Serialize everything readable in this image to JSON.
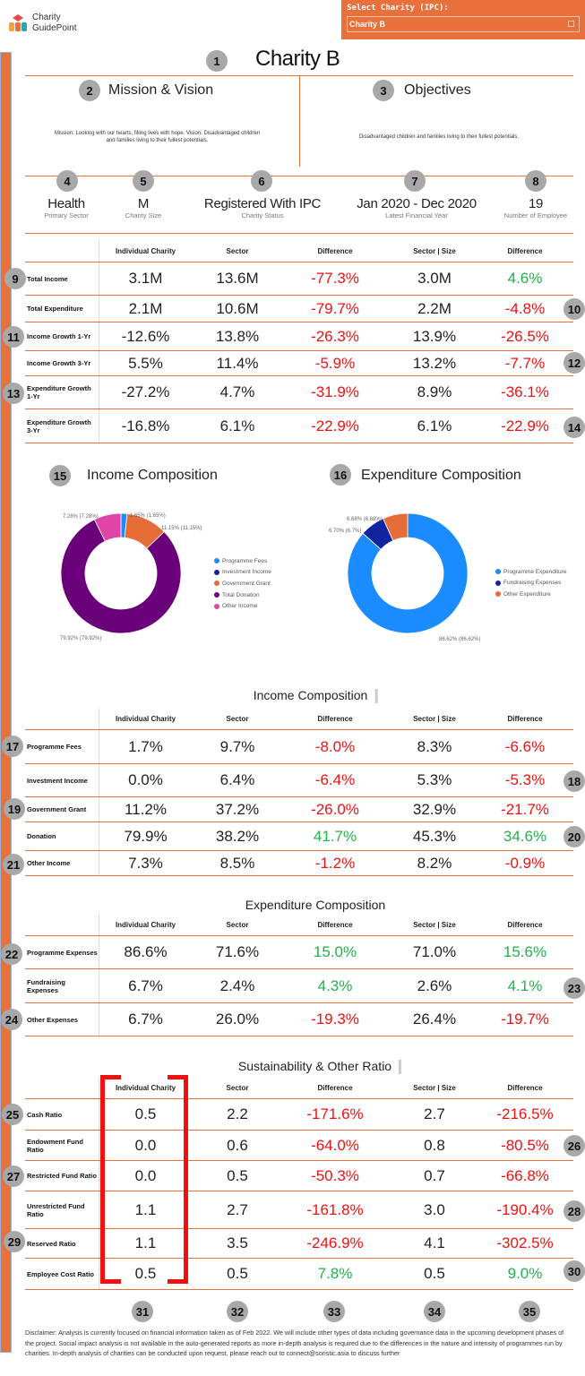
{
  "brand": {
    "logo_line1": "Charity",
    "logo_line2": "GuidePoint"
  },
  "selector": {
    "label": "Select  Charity  (IPC):",
    "value": "Charity B"
  },
  "header": {
    "title": "Charity B"
  },
  "mission": {
    "heading": "Mission & Vision",
    "text": "Mission: Looking with our hearts, filling lives with hope. Vision: Disadvantaged children and families living to their fullest potentials."
  },
  "objectives": {
    "heading": "Objectives",
    "text": "Disadvantaged children and families living to their fullest potentials."
  },
  "facts": [
    {
      "value": "Health",
      "label": "Primary Sector"
    },
    {
      "value": "M",
      "label": "Charity Size"
    },
    {
      "value": "Registered With IPC",
      "label": "Charity Status"
    },
    {
      "value": "Jan 2020 - Dec 2020",
      "label": "Latest Financial Year"
    },
    {
      "value": "19",
      "label": "Number of Employee"
    }
  ],
  "columns": [
    "Individual Charity",
    "Sector",
    "Difference",
    "Sector | Size",
    "Difference"
  ],
  "financial_table": {
    "rows": [
      {
        "label": "Total Income",
        "values": [
          "3.1M",
          "13.6M",
          "-77.3%",
          "3.0M",
          "4.6%"
        ]
      },
      {
        "label": "Total Expenditure",
        "values": [
          "2.1M",
          "10.6M",
          "-79.7%",
          "2.2M",
          "-4.8%"
        ]
      },
      {
        "label": "Income Growth 1-Yr",
        "values": [
          "-12.6%",
          "13.8%",
          "-26.3%",
          "13.9%",
          "-26.5%"
        ]
      },
      {
        "label": "Income Growth 3-Yr",
        "values": [
          "5.5%",
          "11.4%",
          "-5.9%",
          "13.2%",
          "-7.7%"
        ]
      },
      {
        "label": "Expenditure  Growth 1-Yr",
        "values": [
          "-27.2%",
          "4.7%",
          "-31.9%",
          "8.9%",
          "-36.1%"
        ]
      },
      {
        "label": "Expenditure  Growth 3-Yr",
        "values": [
          "-16.8%",
          "6.1%",
          "-22.9%",
          "6.1%",
          "-22.9%"
        ]
      }
    ]
  },
  "chart_data": [
    {
      "type": "pie",
      "title": "Income Composition",
      "categories": [
        "Programme Fees",
        "Investment Income",
        "Government Grant",
        "Total Donation",
        "Other Income"
      ],
      "values": [
        1.65,
        0,
        11.15,
        79.92,
        7.28
      ],
      "data_labels": [
        "1.65% (1.65%)",
        "",
        "11.15% (11.15%)",
        "79.92% (79.92%)",
        "7.28% (7.28%)"
      ],
      "colors": [
        "#1a8cff",
        "#12239e",
        "#e66c37",
        "#6b007b",
        "#e044a7"
      ],
      "legend": "right",
      "donut": true
    },
    {
      "type": "pie",
      "title": "Expenditure Composition",
      "categories": [
        "Programme Expenditure",
        "Fundraising Expenses",
        "Other Expenditure"
      ],
      "values": [
        86.62,
        6.7,
        6.68
      ],
      "data_labels": [
        "86.62% (86.62%)",
        "6.70% (6.7%)",
        "6.68% (6.68%)"
      ],
      "colors": [
        "#1a8cff",
        "#12239e",
        "#e66c37"
      ],
      "legend": "right",
      "donut": true
    }
  ],
  "income_table": {
    "title": "Income Composition",
    "rows": [
      {
        "label": "Programme Fees",
        "values": [
          "1.7%",
          "9.7%",
          "-8.0%",
          "8.3%",
          "-6.6%"
        ]
      },
      {
        "label": "Investment Income",
        "values": [
          "0.0%",
          "6.4%",
          "-6.4%",
          "5.3%",
          "-5.3%"
        ]
      },
      {
        "label": "Government Grant",
        "values": [
          "11.2%",
          "37.2%",
          "-26.0%",
          "32.9%",
          "-21.7%"
        ]
      },
      {
        "label": "Donation",
        "values": [
          "79.9%",
          "38.2%",
          "41.7%",
          "45.3%",
          "34.6%"
        ]
      },
      {
        "label": "Other Income",
        "values": [
          "7.3%",
          "8.5%",
          "-1.2%",
          "8.2%",
          "-0.9%"
        ]
      }
    ]
  },
  "expenditure_table": {
    "title": "Expenditure Composition",
    "rows": [
      {
        "label": "Programme Expenses",
        "values": [
          "86.6%",
          "71.6%",
          "15.0%",
          "71.0%",
          "15.6%"
        ]
      },
      {
        "label": "Fundraising Expenses",
        "values": [
          "6.7%",
          "2.4%",
          "4.3%",
          "2.6%",
          "4.1%"
        ]
      },
      {
        "label": "Other Expenses",
        "values": [
          "6.7%",
          "26.0%",
          "-19.3%",
          "26.4%",
          "-19.7%"
        ]
      }
    ]
  },
  "sustainability_table": {
    "title": "Sustainability & Other Ratio",
    "rows": [
      {
        "label": "Cash Ratio",
        "values": [
          "0.5",
          "2.2",
          "-171.6%",
          "2.7",
          "-216.5%"
        ]
      },
      {
        "label": "Endowment  Fund Ratio",
        "values": [
          "0.0",
          "0.6",
          "-64.0%",
          "0.8",
          "-80.5%"
        ]
      },
      {
        "label": "Restricted Fund Ratio",
        "values": [
          "0.0",
          "0.5",
          "-50.3%",
          "0.7",
          "-66.8%"
        ]
      },
      {
        "label": "Unrestricted Fund Ratio",
        "values": [
          "1.1",
          "2.7",
          "-161.8%",
          "3.0",
          "-190.4%"
        ]
      },
      {
        "label": "Reserved Ratio",
        "values": [
          "1.1",
          "3.5",
          "-246.9%",
          "4.1",
          "-302.5%"
        ]
      },
      {
        "label": "Employee  Cost Ratio",
        "values": [
          "0.5",
          "0.5",
          "7.8%",
          "0.5",
          "9.0%"
        ]
      }
    ]
  },
  "colors": {
    "accent": "#E8703A",
    "negative": "#f01010",
    "positive": "#22b14c",
    "highlight": "#f01010"
  },
  "disclaimer": "Disclaimer: Analysis is currently focused on financial information taken as of Feb 2022. We will include other types of data including governance data in the upcoming development phases of the project. Social impact analysis is not available in the auto-generated reports as more in-depth analysis is required due to the differences in the nature and intensity of programmes run by charities. In-depth analysis of charities can be conducted upon request, please reach out to connect@soristic.asia to discuss further",
  "badges": [
    "1",
    "2",
    "3",
    "4",
    "5",
    "6",
    "7",
    "8",
    "9",
    "10",
    "11",
    "12",
    "13",
    "14",
    "15",
    "16",
    "17",
    "18",
    "19",
    "20",
    "21",
    "22",
    "23",
    "24",
    "25",
    "26",
    "27",
    "28",
    "29",
    "30",
    "31",
    "32",
    "33",
    "34",
    "35"
  ]
}
